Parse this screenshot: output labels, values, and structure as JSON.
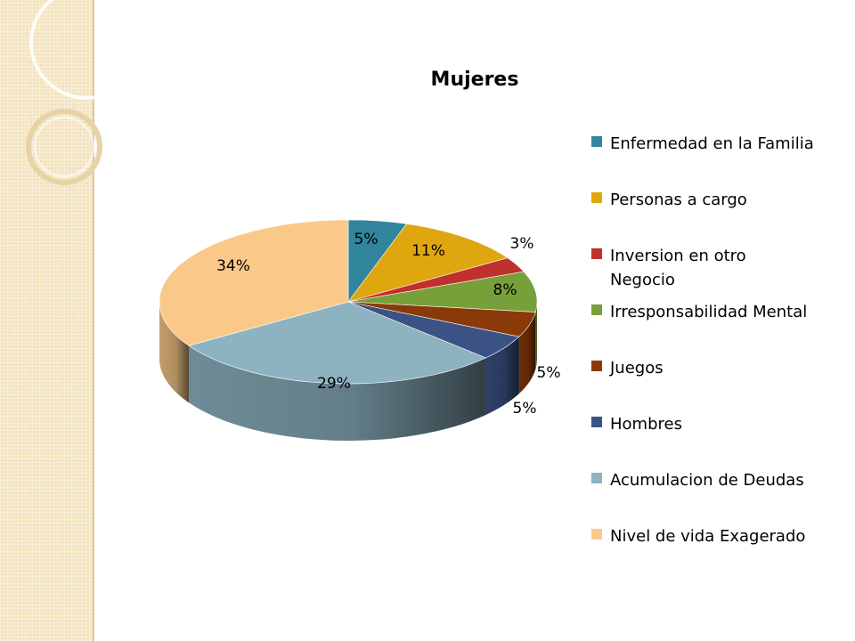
{
  "chart_data": {
    "type": "pie",
    "title": "Mujeres",
    "legend_position": "right",
    "slices": [
      {
        "label": "Enfermedad en la Familia",
        "value": 5,
        "data_label": "5%",
        "color": "#31859c"
      },
      {
        "label": "Personas a cargo",
        "value": 11,
        "data_label": "11%",
        "color": "#e0a60f"
      },
      {
        "label": "Inversion en otro Negocio",
        "value": 3,
        "data_label": "3%",
        "color": "#c0302c"
      },
      {
        "label": "Irresponsabilidad Mental",
        "value": 8,
        "data_label": "8%",
        "color": "#77a03a"
      },
      {
        "label": "Juegos",
        "value": 5,
        "data_label": "5%",
        "color": "#8a3a08"
      },
      {
        "label": "Hombres",
        "value": 5,
        "data_label": "5%",
        "color": "#3b5284"
      },
      {
        "label": "Acumulacion de Deudas",
        "value": 29,
        "data_label": "29%",
        "color": "#8db3c1"
      },
      {
        "label": "Nivel de vida Exagerado",
        "value": 34,
        "data_label": "34%",
        "color": "#fac98a"
      }
    ]
  }
}
